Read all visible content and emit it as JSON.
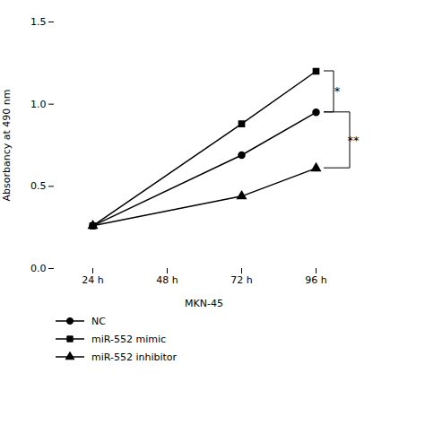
{
  "chart_data": {
    "type": "line",
    "xlabel": "MKN-45",
    "ylabel": "Absorbancy at 490 nm",
    "categories": [
      "24 h",
      "48 h",
      "72 h",
      "96 h"
    ],
    "series": [
      {
        "name": "NC",
        "x": [
          "24 h",
          "72 h",
          "96 h"
        ],
        "values": [
          0.26,
          0.69,
          0.95
        ],
        "color": "#000000",
        "marker": "circle"
      },
      {
        "name": "miR-552 mimic",
        "x": [
          "24 h",
          "72 h",
          "96 h"
        ],
        "values": [
          0.26,
          0.88,
          1.2
        ],
        "color": "#000000",
        "marker": "square"
      },
      {
        "name": "miR-552 inhibitor",
        "x": [
          "24 h",
          "72 h",
          "96 h"
        ],
        "values": [
          0.26,
          0.44,
          0.61
        ],
        "color": "#000000",
        "marker": "triangle"
      }
    ],
    "ylim": [
      0.0,
      1.5
    ],
    "yticks": [
      {
        "value": 0,
        "label": "0.0"
      },
      0.5,
      {
        "value": 1,
        "label": "1.0"
      },
      1.5
    ],
    "grid": false,
    "legend": "bottom",
    "annotations": [
      {
        "text": "*",
        "x": "96 h",
        "between": [
          "miR-552 mimic",
          "NC"
        ]
      },
      {
        "text": "**",
        "x": "96 h",
        "between": [
          "NC",
          "miR-552 inhibitor"
        ]
      }
    ]
  }
}
